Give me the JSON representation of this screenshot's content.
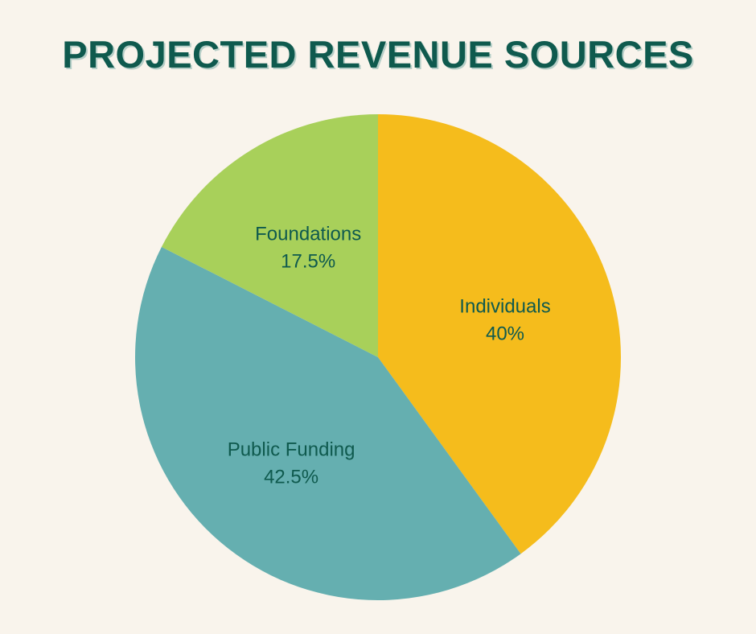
{
  "title": "PROJECTED REVENUE SOURCES",
  "colors": {
    "background": "#f9f4ec",
    "title": "#0f5a4e",
    "label": "#0f5a4e"
  },
  "chart_data": {
    "type": "pie",
    "title": "PROJECTED REVENUE SOURCES",
    "start_angle_deg": 0,
    "direction": "clockwise",
    "slices": [
      {
        "label": "Individuals",
        "value": 40,
        "value_label": "40%",
        "color": "#f5bc1c"
      },
      {
        "label": "Public Funding",
        "value": 42.5,
        "value_label": "42.5%",
        "color": "#65afb0"
      },
      {
        "label": "Foundations",
        "value": 17.5,
        "value_label": "17.5%",
        "color": "#a8d05a"
      }
    ]
  }
}
